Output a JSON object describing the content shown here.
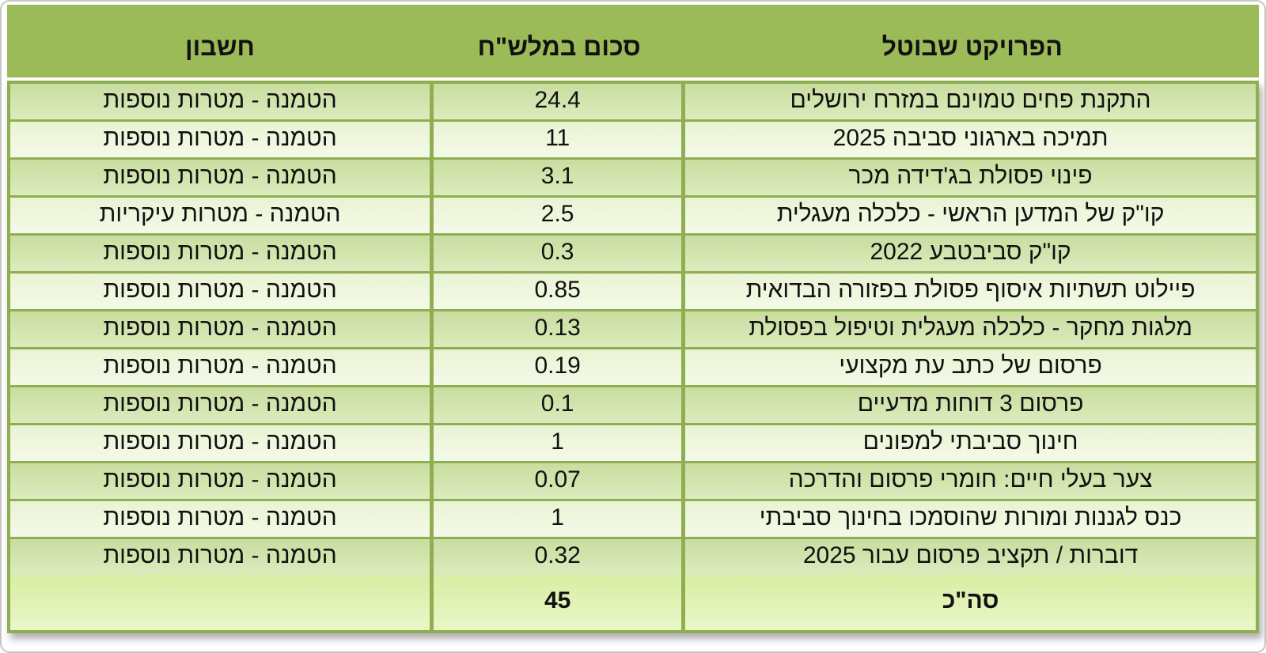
{
  "table": {
    "headers": {
      "project": "הפרויקט שבוטל",
      "amount": "סכום במלש\"ח",
      "account": "חשבון"
    },
    "rows": [
      {
        "project": "התקנת פחים טמוינם במזרח ירושלים",
        "amount": "24.4",
        "account": "הטמנה - מטרות נוספות"
      },
      {
        "project": "תמיכה בארגוני סביבה 2025",
        "amount": "11",
        "account": "הטמנה - מטרות נוספות"
      },
      {
        "project": "פינוי פסולת בג'דידה מכר",
        "amount": "3.1",
        "account": "הטמנה - מטרות נוספות"
      },
      {
        "project": "קו\"ק של המדען הראשי - כלכלה מעגלית",
        "amount": "2.5",
        "account": "הטמנה - מטרות עיקריות"
      },
      {
        "project": "קו\"ק סביבטבע 2022",
        "amount": "0.3",
        "account": "הטמנה - מטרות נוספות"
      },
      {
        "project": "פיילוט תשתיות איסוף פסולת בפזורה הבדואית",
        "amount": "0.85",
        "account": "הטמנה - מטרות נוספות"
      },
      {
        "project": "מלגות מחקר - כלכלה מעגלית וטיפול בפסולת",
        "amount": "0.13",
        "account": "הטמנה - מטרות נוספות"
      },
      {
        "project": "פרסום של כתב עת מקצועי",
        "amount": "0.19",
        "account": "הטמנה - מטרות נוספות"
      },
      {
        "project": "פרסום 3 דוחות מדעיים",
        "amount": "0.1",
        "account": "הטמנה - מטרות נוספות"
      },
      {
        "project": "חינוך סביבתי למפונים",
        "amount": "1",
        "account": "הטמנה - מטרות נוספות"
      },
      {
        "project": "צער בעלי חיים: חומרי פרסום והדרכה",
        "amount": "0.07",
        "account": "הטמנה - מטרות נוספות"
      },
      {
        "project": "כנס לגננות ומורות שהוסמכו בחינוך סביבתי",
        "amount": "1",
        "account": "הטמנה - מטרות נוספות"
      },
      {
        "project": "דוברות / תקציב פרסום עבור 2025",
        "amount": "0.32",
        "account": "הטמנה - מטרות נוספות"
      }
    ],
    "total": {
      "label": "סה\"כ",
      "amount": "45",
      "account": ""
    }
  },
  "colors": {
    "header_bg": "#9bbb59",
    "border": "#8fae52",
    "band_dark_top": "#c9dd9f",
    "band_dark_bottom": "#dcebbd",
    "band_light_top": "#e9f3d3",
    "band_light_bottom": "#f4fae8",
    "total_top": "#d9eda3",
    "total_bottom": "#e9f7c8",
    "text": "#111111"
  }
}
